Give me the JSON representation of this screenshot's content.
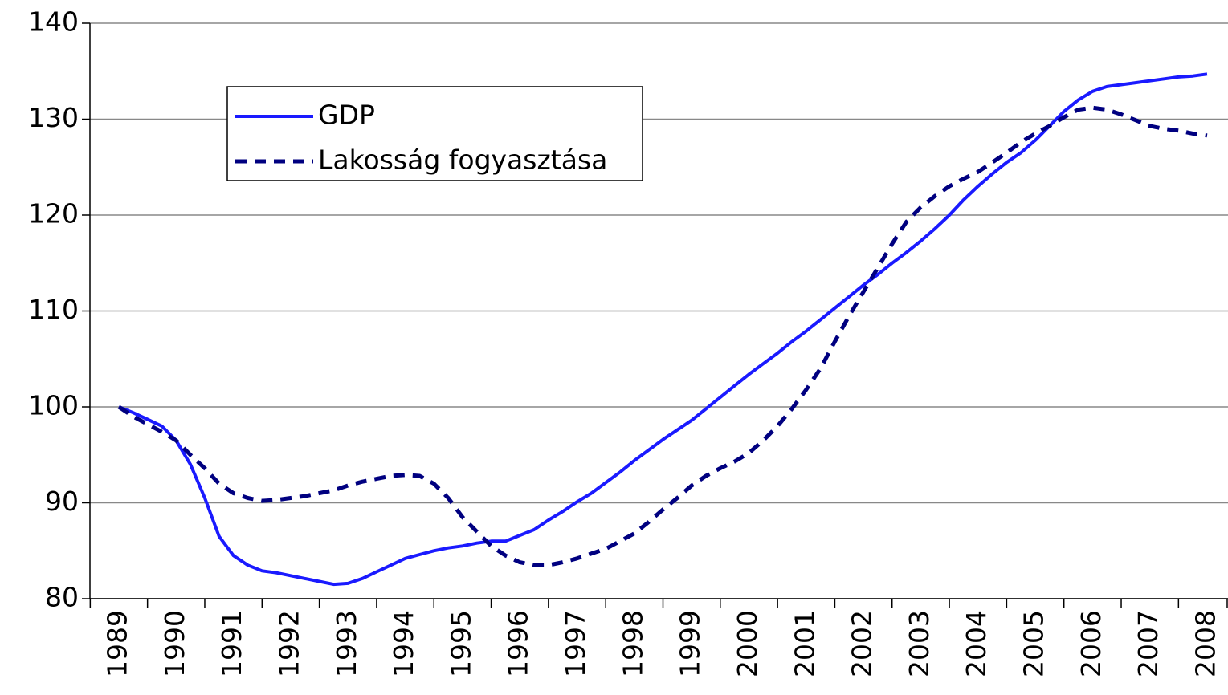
{
  "chart_data": {
    "type": "line",
    "categories": [
      "1989",
      null,
      null,
      null,
      "1990",
      null,
      null,
      null,
      "1991",
      null,
      null,
      null,
      "1992",
      null,
      null,
      null,
      "1993",
      null,
      null,
      null,
      "1994",
      null,
      null,
      null,
      "1995",
      null,
      null,
      null,
      "1996",
      null,
      null,
      null,
      "1997",
      null,
      null,
      null,
      "1998",
      null,
      null,
      null,
      "1999",
      null,
      null,
      null,
      "2000",
      null,
      null,
      null,
      "2001",
      null,
      null,
      null,
      "2002",
      null,
      null,
      null,
      "2003",
      null,
      null,
      null,
      "2004",
      null,
      null,
      null,
      "2005",
      null,
      null,
      null,
      "2006",
      null,
      null,
      null,
      "2007",
      null,
      null,
      null,
      "2008"
    ],
    "series": [
      {
        "name": "GDP",
        "color": "#1a1aff",
        "dash": false,
        "values": [
          100,
          99.4,
          98.7,
          98.0,
          96.5,
          94.0,
          90.5,
          86.5,
          84.5,
          83.5,
          82.9,
          82.7,
          82.4,
          82.1,
          81.8,
          81.5,
          81.6,
          82.1,
          82.8,
          83.5,
          84.2,
          84.6,
          85.0,
          85.3,
          85.5,
          85.8,
          86.0,
          86.0,
          86.6,
          87.2,
          88.2,
          89.1,
          90.1,
          91.0,
          92.1,
          93.2,
          94.4,
          95.5,
          96.6,
          97.6,
          98.6,
          99.8,
          101.0,
          102.2,
          103.4,
          104.5,
          105.6,
          106.8,
          107.9,
          109.1,
          110.3,
          111.5,
          112.7,
          113.8,
          115.0,
          116.1,
          117.3,
          118.6,
          120.0,
          121.6,
          123.0,
          124.3,
          125.5,
          126.5,
          127.8,
          129.3,
          130.8,
          132.0,
          132.9,
          133.4,
          133.6,
          133.8,
          134.0,
          134.2,
          134.4,
          134.5,
          134.7
        ]
      },
      {
        "name": "Lakosság fogyasztása",
        "color": "#000080",
        "dash": true,
        "values": [
          100,
          99.0,
          98.2,
          97.4,
          96.5,
          95.0,
          93.6,
          92.0,
          91.0,
          90.5,
          90.2,
          90.3,
          90.5,
          90.7,
          91.0,
          91.3,
          91.8,
          92.2,
          92.5,
          92.8,
          92.9,
          92.8,
          92.0,
          90.5,
          88.5,
          87.0,
          85.5,
          84.5,
          83.8,
          83.5,
          83.5,
          83.8,
          84.2,
          84.7,
          85.2,
          86.0,
          86.8,
          88.0,
          89.3,
          90.5,
          91.8,
          92.8,
          93.6,
          94.3,
          95.2,
          96.5,
          98.0,
          99.8,
          101.8,
          104.0,
          106.8,
          109.5,
          112.0,
          114.5,
          117.0,
          119.3,
          120.8,
          122.0,
          123.0,
          123.8,
          124.5,
          125.5,
          126.5,
          127.6,
          128.5,
          129.3,
          130.2,
          131.0,
          131.2,
          131.0,
          130.5,
          129.9,
          129.3,
          129.0,
          128.8,
          128.5,
          128.3
        ]
      }
    ],
    "ylim": [
      80,
      140
    ],
    "yticks": [
      80,
      90,
      100,
      110,
      120,
      130,
      140
    ],
    "grid": true,
    "legend": "upper left"
  }
}
